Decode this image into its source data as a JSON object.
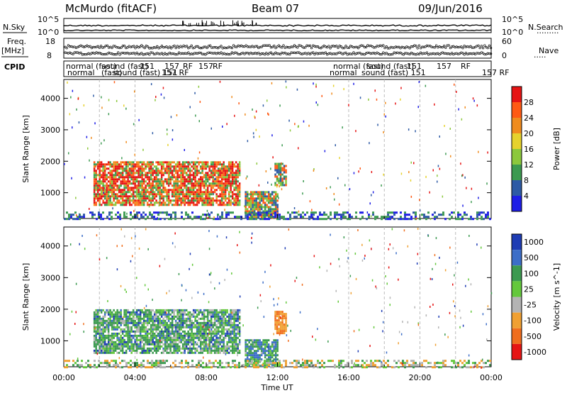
{
  "header": {
    "station": "McMurdo (fitACF)",
    "beam": "Beam 07",
    "date": "09/Jun/2016"
  },
  "left_labels": {
    "nsky": "N.Sky",
    "freq": "Freq.",
    "freq_unit": "[MHz]",
    "cpid": "CPID"
  },
  "right_labels": {
    "nsearch": "N.Search",
    "nave": "Nave"
  },
  "noise_axis": {
    "top": "10^5",
    "bottom": "10^0"
  },
  "freq_axis": {
    "top": "18",
    "bottom": "8"
  },
  "nave_axis": {
    "top": "60",
    "bottom": "0"
  },
  "cpid_labels": {
    "row1": [
      "normal (fast)",
      "sound (fast)",
      "151",
      "157",
      "RF",
      "157",
      "RF",
      "normal (fast)",
      "sound (fast)",
      "151",
      "157",
      "RF"
    ],
    "row2": [
      "normal",
      "(fast)",
      "sound (fast) 151",
      "157 RF",
      "normal",
      "sound (fast) 151",
      "157 RF"
    ]
  },
  "chart_data": [
    {
      "type": "heatmap",
      "title": "McMurdo (fitACF)  Beam 07  09/Jun/2016",
      "xlabel": "Time UT",
      "ylabel": "Slant Range [km]",
      "colorbar_label": "Power [dB]",
      "xlim": [
        "00:00",
        "24:00"
      ],
      "ylim": [
        180,
        4600
      ],
      "x_ticks": [
        "00:00",
        "04:00",
        "08:00",
        "12:00",
        "16:00",
        "20:00",
        "00:00"
      ],
      "y_ticks": [
        1000,
        2000,
        3000,
        4000
      ],
      "colorbar_ticks": [
        4,
        8,
        12,
        16,
        20,
        24,
        28
      ],
      "colorbar_colors": [
        "#1e1ee6",
        "#2d5aa5",
        "#3c9a50",
        "#8cc83c",
        "#e6d22d",
        "#f08c1e",
        "#ff5a14",
        "#e61414"
      ],
      "scatter_regions": [
        {
          "name": "main echo",
          "t_start": "01:40",
          "t_end": "09:50",
          "range_low": 600,
          "range_high": 2000,
          "level": "strong"
        },
        {
          "name": "descending echo",
          "t_start": "10:10",
          "t_end": "12:00",
          "range_low": 200,
          "range_high": 1050,
          "level": "moderate"
        },
        {
          "name": "isolated echo",
          "t_start": "11:50",
          "t_end": "12:30",
          "range_low": 1250,
          "range_high": 1950,
          "level": "moderate"
        },
        {
          "name": "ground scatter band",
          "t_start": "00:00",
          "t_end": "24:00",
          "range_low": 180,
          "range_high": 400,
          "level": "weak"
        }
      ]
    },
    {
      "type": "heatmap",
      "xlabel": "Time UT",
      "ylabel": "Slant Range [km]",
      "colorbar_label": "Velocity [m s^-1]",
      "xlim": [
        "00:00",
        "24:00"
      ],
      "ylim": [
        180,
        4600
      ],
      "x_ticks": [
        "00:00",
        "04:00",
        "08:00",
        "12:00",
        "16:00",
        "20:00",
        "00:00"
      ],
      "y_ticks": [
        1000,
        2000,
        3000,
        4000
      ],
      "colorbar_ticks": [
        1000,
        500,
        100,
        25,
        -25,
        -100,
        -500,
        -1000
      ],
      "colorbar_colors": [
        "#1e3cb4",
        "#3c6ec8",
        "#3c9a50",
        "#64c83c",
        "#b4b4b4",
        "#f0a032",
        "#f06e1e",
        "#e61414"
      ],
      "scatter_regions": [
        {
          "name": "main echo",
          "t_start": "01:40",
          "t_end": "09:50",
          "range_low": 600,
          "range_high": 2000,
          "velocity": 50
        },
        {
          "name": "descending echo",
          "t_start": "10:10",
          "t_end": "12:00",
          "range_low": 200,
          "range_high": 1050,
          "velocity": 80
        },
        {
          "name": "isolated echo",
          "t_start": "11:50",
          "t_end": "12:30",
          "range_low": 1250,
          "range_high": 1950,
          "velocity": -300
        },
        {
          "name": "ground scatter band",
          "t_start": "00:00",
          "t_end": "24:00",
          "range_low": 180,
          "range_high": 400,
          "velocity": 0
        }
      ]
    }
  ]
}
